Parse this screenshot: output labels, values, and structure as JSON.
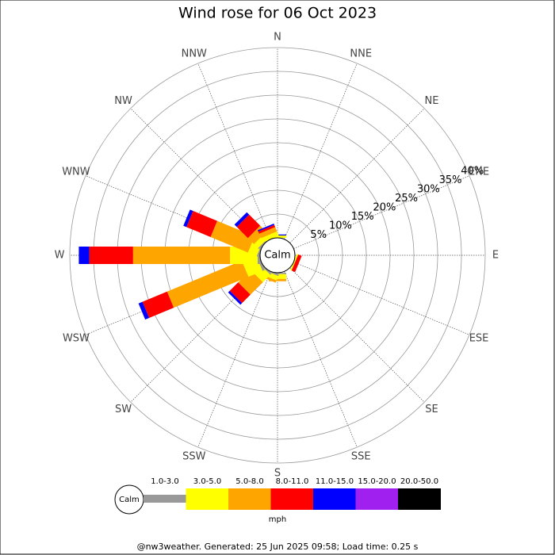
{
  "chart_data": {
    "type": "wind-rose",
    "title": "Wind rose for 06 Oct 2023",
    "categories": [
      "N",
      "NNE",
      "NE",
      "ENE",
      "E",
      "ESE",
      "SE",
      "SSE",
      "S",
      "SSW",
      "SW",
      "WSW",
      "W",
      "WNW",
      "NW",
      "NNW"
    ],
    "center_label": "Calm",
    "rlim": [
      0,
      40
    ],
    "rticks": [
      {
        "value": 5,
        "label": "5%"
      },
      {
        "value": 10,
        "label": "10%"
      },
      {
        "value": 15,
        "label": "15%"
      },
      {
        "value": 20,
        "label": "20%"
      },
      {
        "value": 25,
        "label": "25%"
      },
      {
        "value": 30,
        "label": "30%"
      },
      {
        "value": 35,
        "label": "35%"
      },
      {
        "value": 40,
        "label": "40%"
      }
    ],
    "unit": "mph",
    "series": [
      {
        "name": "1.0-3.0",
        "color": "#999999",
        "values": [
          0,
          0,
          0,
          0,
          0,
          0,
          0,
          0,
          0.3,
          0.3,
          0.3,
          0.5,
          0.5,
          0.3,
          0.3,
          0
        ]
      },
      {
        "name": "3.0-5.0",
        "color": "#ffff00",
        "values": [
          0.5,
          0,
          0,
          0,
          0,
          0.3,
          0,
          0,
          1,
          1,
          2.2,
          3.2,
          5.8,
          2,
          1.2,
          1
        ]
      },
      {
        "name": "5.0-8.0",
        "color": "#ffa500",
        "values": [
          0,
          0,
          0,
          0,
          0,
          0,
          0,
          0,
          0.5,
          0.5,
          3.7,
          17,
          20.4,
          8.5,
          1.8,
          1
        ]
      },
      {
        "name": "8.0-11.0",
        "color": "#ff0000",
        "values": [
          0,
          0,
          0,
          0,
          0,
          0.8,
          0,
          0,
          0,
          0,
          2.5,
          5.6,
          9.2,
          5.5,
          3.3,
          0.5
        ]
      },
      {
        "name": "11.0-15.0",
        "color": "#0000ff",
        "values": [
          0.2,
          0,
          0,
          0,
          0,
          0,
          0,
          0,
          0,
          0,
          0.5,
          0.9,
          2.2,
          0.7,
          0.7,
          0.3
        ]
      },
      {
        "name": "15.0-20.0",
        "color": "#a020f0",
        "values": [
          0,
          0,
          0,
          0,
          0,
          0,
          0,
          0,
          0,
          0,
          0,
          0,
          0,
          0,
          0,
          0
        ]
      },
      {
        "name": "20.0-50.0",
        "color": "#000000",
        "values": [
          0,
          0,
          0,
          0,
          0,
          0,
          0,
          0,
          0,
          0,
          0,
          0,
          0,
          0,
          0,
          0
        ]
      }
    ],
    "footer": "@nw3weather. Generated: 25 Jun 2025 09:58; Load time: 0.25 s"
  }
}
